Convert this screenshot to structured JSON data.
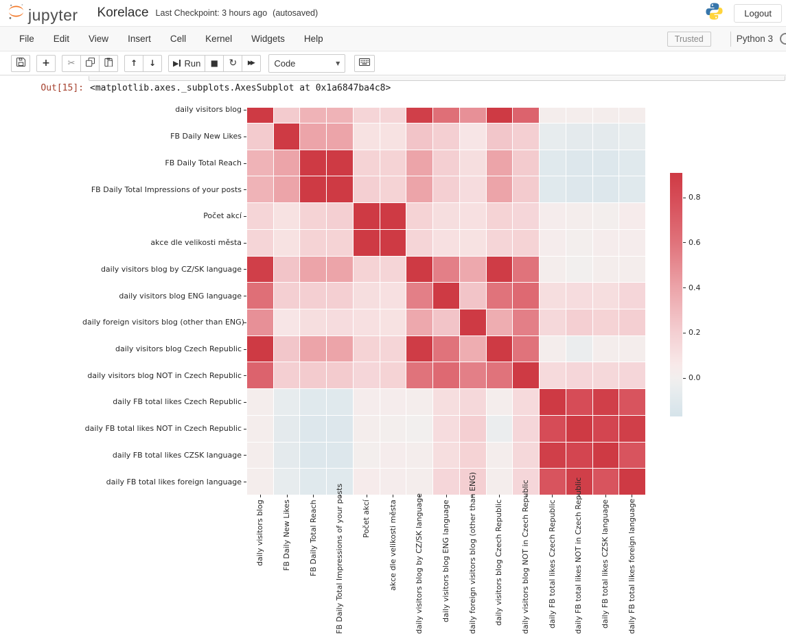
{
  "header": {
    "logo_text": "jupyter",
    "title": "Korelace",
    "checkpoint": "Last Checkpoint: 3 hours ago",
    "autosaved": "(autosaved)",
    "logout_label": "Logout"
  },
  "menu": {
    "items": [
      "File",
      "Edit",
      "View",
      "Insert",
      "Cell",
      "Kernel",
      "Widgets",
      "Help"
    ],
    "trusted_label": "Trusted",
    "kernel_name": "Python 3"
  },
  "toolbar": {
    "run_label": "Run",
    "cell_type": "Code",
    "icons": {
      "add": "+",
      "cut": "✂",
      "move_up": "↑",
      "move_down": "↓",
      "run_play": "▶",
      "stop": "■",
      "restart": "↻",
      "restart_run_all": "▶▶",
      "dropdown": "▼",
      "kernel_idle": "○"
    }
  },
  "output": {
    "prompt": "Out[15]:",
    "value": "<matplotlib.axes._subplots.AxesSubplot at 0x1a6847ba4c8>"
  },
  "colors": {
    "jupyter_orange": "#f37726",
    "python_blue": "#3776ab",
    "python_yellow": "#ffd43b",
    "out_prompt_red": "#a5402d",
    "heatmap_max_red": "#ce3a44",
    "heatmap_min_blue": "#d5e3ea"
  },
  "chart_data": {
    "type": "heatmap",
    "title": "",
    "xlabel": "",
    "ylabel": "",
    "grid": false,
    "legend_position": "colorbar-right",
    "labels": [
      "daily visitors blog",
      "FB Daily New Likes",
      "FB Daily Total Reach",
      "FB Daily Total Impressions of your posts",
      "Počet akcí",
      "akce dle velikosti města",
      "daily visitors blog by CZ/SK language",
      "daily visitors blog ENG language",
      "daily foreign visitors blog (other than ENG)",
      "daily visitors blog Czech Republic",
      "daily visitors blog NOT in Czech Republic",
      "daily FB total likes Czech Republic",
      "daily FB total likes NOT in Czech Republic",
      "daily FB total likes CZSK language",
      "daily FB total likes foreign language"
    ],
    "matrix": [
      [
        1.0,
        0.22,
        0.33,
        0.33,
        0.17,
        0.17,
        0.88,
        0.62,
        0.48,
        0.93,
        0.68,
        0.02,
        0.02,
        0.02,
        0.02
      ],
      [
        0.22,
        1.0,
        0.4,
        0.4,
        0.1,
        0.1,
        0.25,
        0.2,
        0.08,
        0.24,
        0.2,
        -0.06,
        -0.08,
        -0.08,
        -0.06
      ],
      [
        0.33,
        0.4,
        1.0,
        0.92,
        0.18,
        0.18,
        0.4,
        0.2,
        0.12,
        0.4,
        0.22,
        -0.1,
        -0.12,
        -0.12,
        -0.1
      ],
      [
        0.33,
        0.4,
        0.92,
        1.0,
        0.2,
        0.18,
        0.4,
        0.2,
        0.13,
        0.4,
        0.22,
        -0.1,
        -0.12,
        -0.12,
        -0.1
      ],
      [
        0.17,
        0.1,
        0.18,
        0.2,
        1.0,
        0.92,
        0.18,
        0.12,
        0.11,
        0.18,
        0.16,
        0.03,
        0.02,
        0.01,
        0.04
      ],
      [
        0.17,
        0.1,
        0.18,
        0.18,
        0.92,
        1.0,
        0.17,
        0.11,
        0.1,
        0.17,
        0.18,
        0.03,
        0.01,
        0.03,
        0.03
      ],
      [
        0.88,
        0.25,
        0.4,
        0.4,
        0.18,
        0.17,
        1.0,
        0.55,
        0.38,
        0.9,
        0.6,
        0.02,
        0.0,
        0.02,
        0.02
      ],
      [
        0.62,
        0.2,
        0.2,
        0.2,
        0.12,
        0.11,
        0.55,
        1.0,
        0.25,
        0.6,
        0.65,
        0.12,
        0.13,
        0.12,
        0.16
      ],
      [
        0.48,
        0.08,
        0.12,
        0.13,
        0.11,
        0.1,
        0.38,
        0.25,
        1.0,
        0.36,
        0.55,
        0.15,
        0.2,
        0.18,
        0.2
      ],
      [
        0.93,
        0.24,
        0.4,
        0.4,
        0.18,
        0.17,
        0.9,
        0.6,
        0.36,
        1.0,
        0.6,
        0.02,
        -0.04,
        0.02,
        0.02
      ],
      [
        0.68,
        0.2,
        0.22,
        0.22,
        0.16,
        0.18,
        0.6,
        0.65,
        0.55,
        0.6,
        1.0,
        0.14,
        0.16,
        0.15,
        0.16
      ],
      [
        0.02,
        -0.06,
        -0.1,
        -0.1,
        0.03,
        0.03,
        0.02,
        0.12,
        0.15,
        0.02,
        0.14,
        1.0,
        0.8,
        0.88,
        0.76
      ],
      [
        0.02,
        -0.08,
        -0.12,
        -0.12,
        0.02,
        0.01,
        0.0,
        0.13,
        0.2,
        -0.04,
        0.16,
        0.8,
        1.0,
        0.84,
        0.88
      ],
      [
        0.02,
        -0.08,
        -0.12,
        -0.12,
        0.01,
        0.03,
        0.02,
        0.12,
        0.18,
        0.02,
        0.15,
        0.88,
        0.84,
        1.0,
        0.76
      ],
      [
        0.02,
        -0.06,
        -0.1,
        -0.1,
        0.04,
        0.03,
        0.02,
        0.16,
        0.2,
        0.02,
        0.16,
        0.76,
        0.88,
        0.76,
        1.0
      ]
    ],
    "colorbar": {
      "ticks": [
        0.8,
        0.6,
        0.4,
        0.2,
        0.0
      ],
      "vmin": -0.17,
      "vmax": 0.91
    },
    "colormap": [
      [
        -0.17,
        "#d5e3ea"
      ],
      [
        -0.06,
        "#e7ecee"
      ],
      [
        0.0,
        "#f2efee"
      ],
      [
        0.06,
        "#f8e9e9"
      ],
      [
        0.2,
        "#f4cfd2"
      ],
      [
        0.4,
        "#eca4a9"
      ],
      [
        0.6,
        "#e0737b"
      ],
      [
        0.8,
        "#d64c57"
      ],
      [
        0.91,
        "#ce3a44"
      ]
    ]
  }
}
